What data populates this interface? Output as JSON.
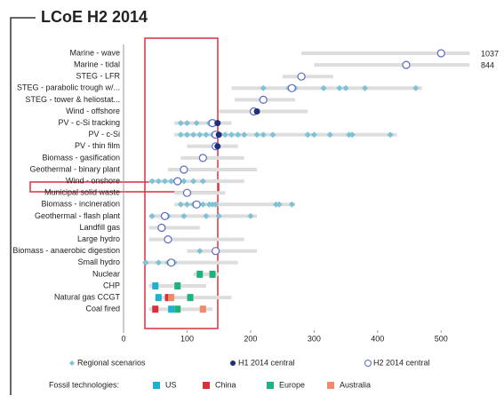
{
  "chart_data": {
    "type": "dot",
    "title": "LCoE H2 2014",
    "categories": [
      "Marine - wave",
      "Marine - tidal",
      "STEG - LFR",
      "STEG - parabolic trough w/...",
      "STEG - tower & heliostat...",
      "Wind - offshore",
      "PV - c-Si tracking",
      "PV - c-Si",
      "PV - thin film",
      "Biomass - gasification",
      "Geothermal - binary plant",
      "Wind - onshore",
      "Municipal solid waste",
      "Biomass - incineration",
      "Geothermal - flash plant",
      "Landfill gas",
      "Large hydro",
      "Biomass - anaerobic digestion",
      "Small hydro",
      "Nuclear",
      "CHP",
      "Natural gas CCGT",
      "Coal fired"
    ],
    "ranges": [
      [
        280,
        545
      ],
      [
        300,
        545
      ],
      [
        250,
        330
      ],
      [
        170,
        470
      ],
      [
        175,
        270
      ],
      [
        150,
        290
      ],
      [
        80,
        170
      ],
      [
        80,
        430
      ],
      [
        100,
        180
      ],
      [
        90,
        190
      ],
      [
        70,
        210
      ],
      [
        40,
        190
      ],
      [
        80,
        160
      ],
      [
        80,
        270
      ],
      [
        40,
        210
      ],
      [
        40,
        120
      ],
      [
        40,
        190
      ],
      [
        100,
        210
      ],
      [
        30,
        180
      ],
      [
        110,
        150
      ],
      [
        40,
        130
      ],
      [
        50,
        170
      ],
      [
        40,
        140
      ]
    ],
    "series": [
      {
        "name": "Regional scenarios",
        "color": "#7ec2d6",
        "values": [
          [],
          [],
          [],
          [
            220,
            260,
            270,
            315,
            340,
            350,
            380,
            460
          ],
          [],
          [],
          [
            90,
            100,
            115,
            135,
            145
          ],
          [
            90,
            100,
            110,
            120,
            130,
            140,
            160,
            170,
            180,
            190,
            210,
            220,
            235,
            290,
            300,
            325,
            355,
            360,
            420
          ],
          [],
          [],
          [],
          [
            45,
            55,
            65,
            75,
            85,
            95,
            110,
            125
          ],
          [],
          [
            90,
            100,
            110,
            125,
            135,
            140,
            145,
            240,
            245,
            265
          ],
          [
            45,
            70,
            95,
            130,
            150,
            200
          ],
          [],
          [],
          [
            120
          ],
          [
            35,
            55,
            70,
            80
          ],
          [],
          [],
          [],
          []
        ]
      },
      {
        "name": "H1 2014 central",
        "color": "#1c2f7a",
        "values": [
          null,
          null,
          null,
          null,
          null,
          210,
          148,
          150,
          148,
          null,
          null,
          null,
          null,
          null,
          null,
          null,
          null,
          null,
          null,
          null,
          null,
          null,
          null
        ]
      },
      {
        "name": "H2 2014 central",
        "color": "#5b6bbf",
        "values": [
          500,
          445,
          280,
          265,
          220,
          205,
          140,
          145,
          145,
          125,
          95,
          85,
          100,
          115,
          65,
          60,
          70,
          145,
          75,
          null,
          null,
          null,
          null
        ]
      }
    ],
    "fossil_label": "Fossil technologies:",
    "fossil_series": [
      {
        "name": "US",
        "color": "#1fb1d1",
        "values": [
          [],
          [],
          [],
          [],
          [],
          [],
          [],
          [],
          [],
          [],
          [],
          [],
          [],
          [],
          [],
          [],
          [],
          [],
          [],
          [],
          [
            50
          ],
          [
            55
          ],
          [
            75
          ]
        ]
      },
      {
        "name": "China",
        "color": "#d9303e",
        "values": [
          [],
          [],
          [],
          [],
          [],
          [],
          [],
          [],
          [],
          [],
          [],
          [],
          [],
          [],
          [],
          [],
          [],
          [],
          [],
          [],
          [],
          [
            70
          ],
          [
            50
          ]
        ]
      },
      {
        "name": "Europe",
        "color": "#1eb27c",
        "values": [
          [],
          [],
          [],
          [],
          [],
          [],
          [],
          [],
          [],
          [],
          [],
          [],
          [],
          [],
          [],
          [],
          [],
          [],
          [],
          [
            120,
            140
          ],
          [
            85
          ],
          [
            105
          ],
          [
            85
          ]
        ]
      },
      {
        "name": "Australia",
        "color": "#ef8a6c",
        "values": [
          [],
          [],
          [],
          [],
          [],
          [],
          [],
          [],
          [],
          [],
          [],
          [],
          [],
          [],
          [],
          [],
          [],
          [],
          [],
          [],
          [],
          [
            75
          ],
          [
            125
          ]
        ]
      }
    ],
    "annotations": [
      {
        "text": "1037",
        "row": 0
      },
      {
        "text": "844",
        "row": 1
      }
    ],
    "xlim": [
      0,
      550
    ],
    "xticks": [
      0,
      100,
      200,
      300,
      400,
      500
    ]
  }
}
